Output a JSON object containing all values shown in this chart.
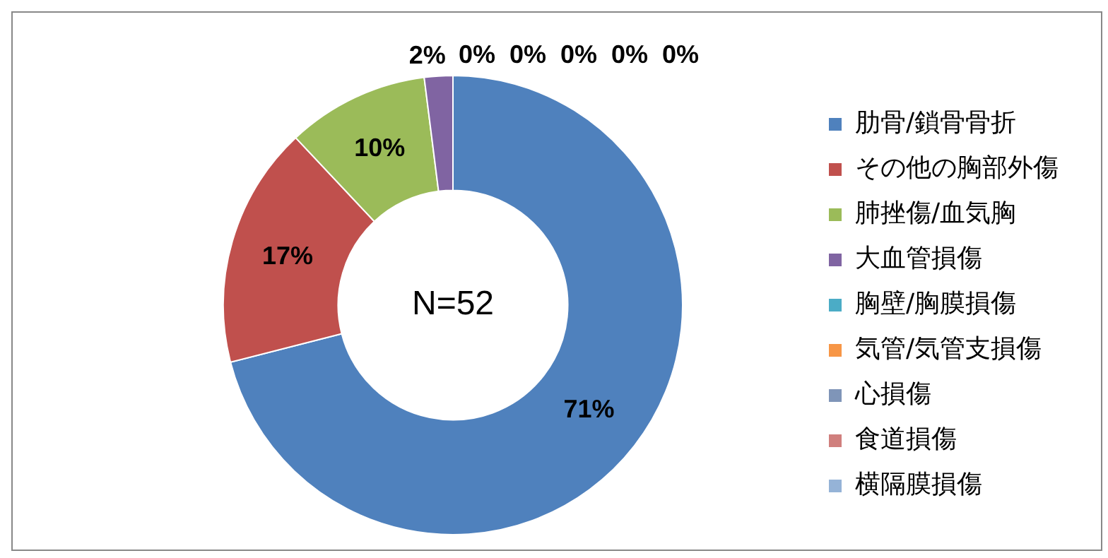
{
  "chart_data": {
    "type": "donut",
    "categories": [
      "肋骨/鎖骨骨折",
      "その他の胸部外傷",
      "肺挫傷/血気胸",
      "大血管損傷",
      "胸壁/胸膜損傷",
      "気管/気管支損傷",
      "心損傷",
      "食道損傷",
      "横隔膜損傷"
    ],
    "values": [
      71,
      17,
      10,
      2,
      0,
      0,
      0,
      0,
      0
    ],
    "colors": [
      "#4f81bd",
      "#c0504d",
      "#9bbb59",
      "#8064a2",
      "#4bacc6",
      "#f79646",
      "#7f95b8",
      "#d07f7d",
      "#95b3d7"
    ],
    "value_labels": [
      "71%",
      "17%",
      "10%",
      "2%",
      "0%",
      "0%",
      "0%",
      "0%",
      "0%"
    ],
    "legend": "right",
    "annotations": [
      "N=52"
    ]
  }
}
